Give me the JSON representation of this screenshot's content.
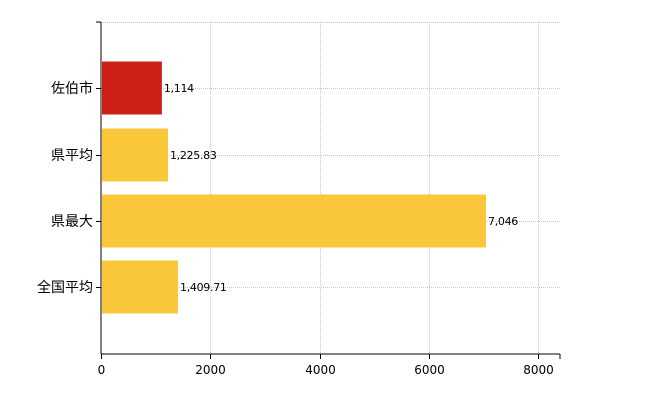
{
  "chart_data": {
    "type": "bar",
    "orientation": "horizontal",
    "categories": [
      "佐伯市",
      "県平均",
      "県最大",
      "全国平均"
    ],
    "values": [
      1114,
      1225.83,
      7046,
      1409.71
    ],
    "value_labels": [
      "1,114",
      "1,225.83",
      "7,046",
      "1,409.71"
    ],
    "bar_colors": [
      "#cc2016",
      "#fbc73a",
      "#fbc73a",
      "#fbc73a"
    ],
    "xlim": [
      0,
      8400
    ],
    "xticks": [
      0,
      2000,
      4000,
      6000,
      8000
    ],
    "xtick_labels": [
      "0",
      "2000",
      "4000",
      "6000",
      "8000"
    ],
    "grid": true,
    "grid_style": "dotted"
  }
}
